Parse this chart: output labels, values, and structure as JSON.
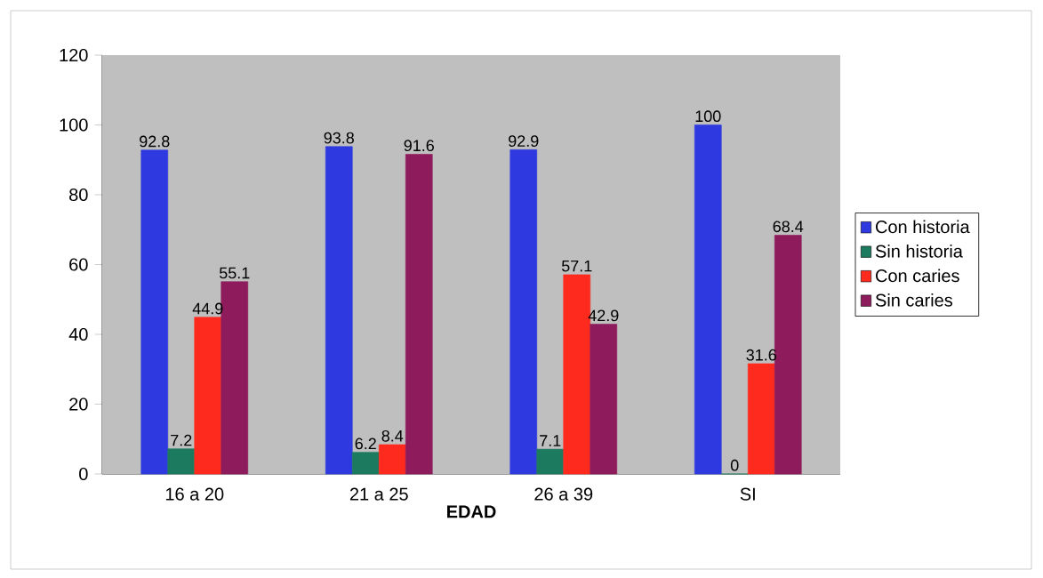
{
  "chart_data": {
    "type": "bar",
    "xlabel": "EDAD",
    "categories": [
      "16 a 20",
      "21 a 25",
      "26 a 39",
      "SI"
    ],
    "series": [
      {
        "name": "Con historia",
        "color": "#2e3ae0",
        "values": [
          92.8,
          93.8,
          92.9,
          100
        ]
      },
      {
        "name": "Sin historia",
        "color": "#1c7a5e",
        "values": [
          7.2,
          6.2,
          7.1,
          0
        ]
      },
      {
        "name": "Con caries",
        "color": "#ff2a1e",
        "values": [
          44.9,
          8.4,
          57.1,
          31.6
        ]
      },
      {
        "name": "Sin caries",
        "color": "#8e1c5c",
        "values": [
          55.1,
          91.6,
          42.9,
          68.4
        ]
      }
    ],
    "ylim": [
      0,
      120
    ],
    "yticks": [
      0,
      20,
      40,
      60,
      80,
      100,
      120
    ],
    "data_labels": true,
    "legend": "right"
  }
}
